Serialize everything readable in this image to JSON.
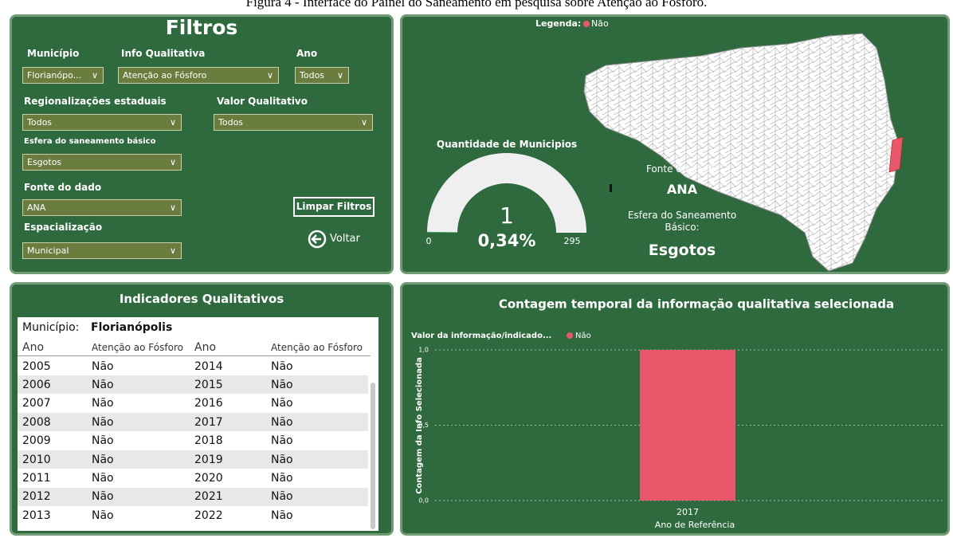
{
  "caption": "Figura 4 - Interface do Painel do Saneamento em pesquisa sobre Atenção ao Fósforo.",
  "filters": {
    "title": "Filtros",
    "fields": [
      {
        "label": "Município",
        "value": "Florianópo..."
      },
      {
        "label": "Info Qualitativa",
        "value": "Atenção ao Fósforo"
      },
      {
        "label": "Ano",
        "value": "Todos"
      },
      {
        "label": "Regionalizações estaduais",
        "value": "Todos"
      },
      {
        "label": "Valor Qualitativo",
        "value": "Todos"
      },
      {
        "label": "Esfera do saneamento básico",
        "value": "Esgotos"
      },
      {
        "label": "Fonte do dado",
        "value": "ANA"
      },
      {
        "label": "Espacialização",
        "value": "Municipal"
      }
    ],
    "clear_button": "Limpar Filtros",
    "back_button": "Voltar"
  },
  "map_panel": {
    "legend_label": "Legenda:",
    "legend_item": "Não",
    "legend_color": "#e8576a",
    "gauge": {
      "title": "Quantidade de Municipios",
      "value": 1,
      "min": 0,
      "max": 295,
      "percent_label": "0,34%"
    },
    "source_label": "Fonte do dado:",
    "source": "ANA",
    "sphere_label": "Esfera do Saneamento Básico:",
    "sphere": "Esgotos"
  },
  "table_panel": {
    "title": "Indicadores Qualitativos",
    "municipality_label": "Município:",
    "municipality": "Florianópolis",
    "columns": [
      "Ano",
      "Atenção ao Fósforo",
      "Ano",
      "Atenção ao Fósforo"
    ],
    "rows": [
      [
        "2005",
        "Não",
        "2014",
        "Não"
      ],
      [
        "2006",
        "Não",
        "2015",
        "Não"
      ],
      [
        "2007",
        "Não",
        "2016",
        "Não"
      ],
      [
        "2008",
        "Não",
        "2017",
        "Não"
      ],
      [
        "2009",
        "Não",
        "2018",
        "Não"
      ],
      [
        "2010",
        "Não",
        "2019",
        "Não"
      ],
      [
        "2011",
        "Não",
        "2020",
        "Não"
      ],
      [
        "2012",
        "Não",
        "2021",
        "Não"
      ],
      [
        "2013",
        "Não",
        "2022",
        "Não"
      ]
    ]
  },
  "chart_data": {
    "type": "bar",
    "title": "Contagem temporal da informação qualitativa selecionada",
    "legend_title": "Valor da informação/indicado...",
    "categories": [
      "2017"
    ],
    "series": [
      {
        "name": "Não",
        "color": "#e8576a",
        "values": [
          1
        ]
      }
    ],
    "x_label": "Ano de Referência",
    "y_label": "Contagem da Info Selecionada",
    "ylim": [
      0,
      1
    ],
    "yticks": [
      {
        "value": 0,
        "label": "0,0"
      },
      {
        "value": 0.5,
        "label": "0,5"
      },
      {
        "value": 1,
        "label": "1,0"
      }
    ],
    "grid": true
  }
}
